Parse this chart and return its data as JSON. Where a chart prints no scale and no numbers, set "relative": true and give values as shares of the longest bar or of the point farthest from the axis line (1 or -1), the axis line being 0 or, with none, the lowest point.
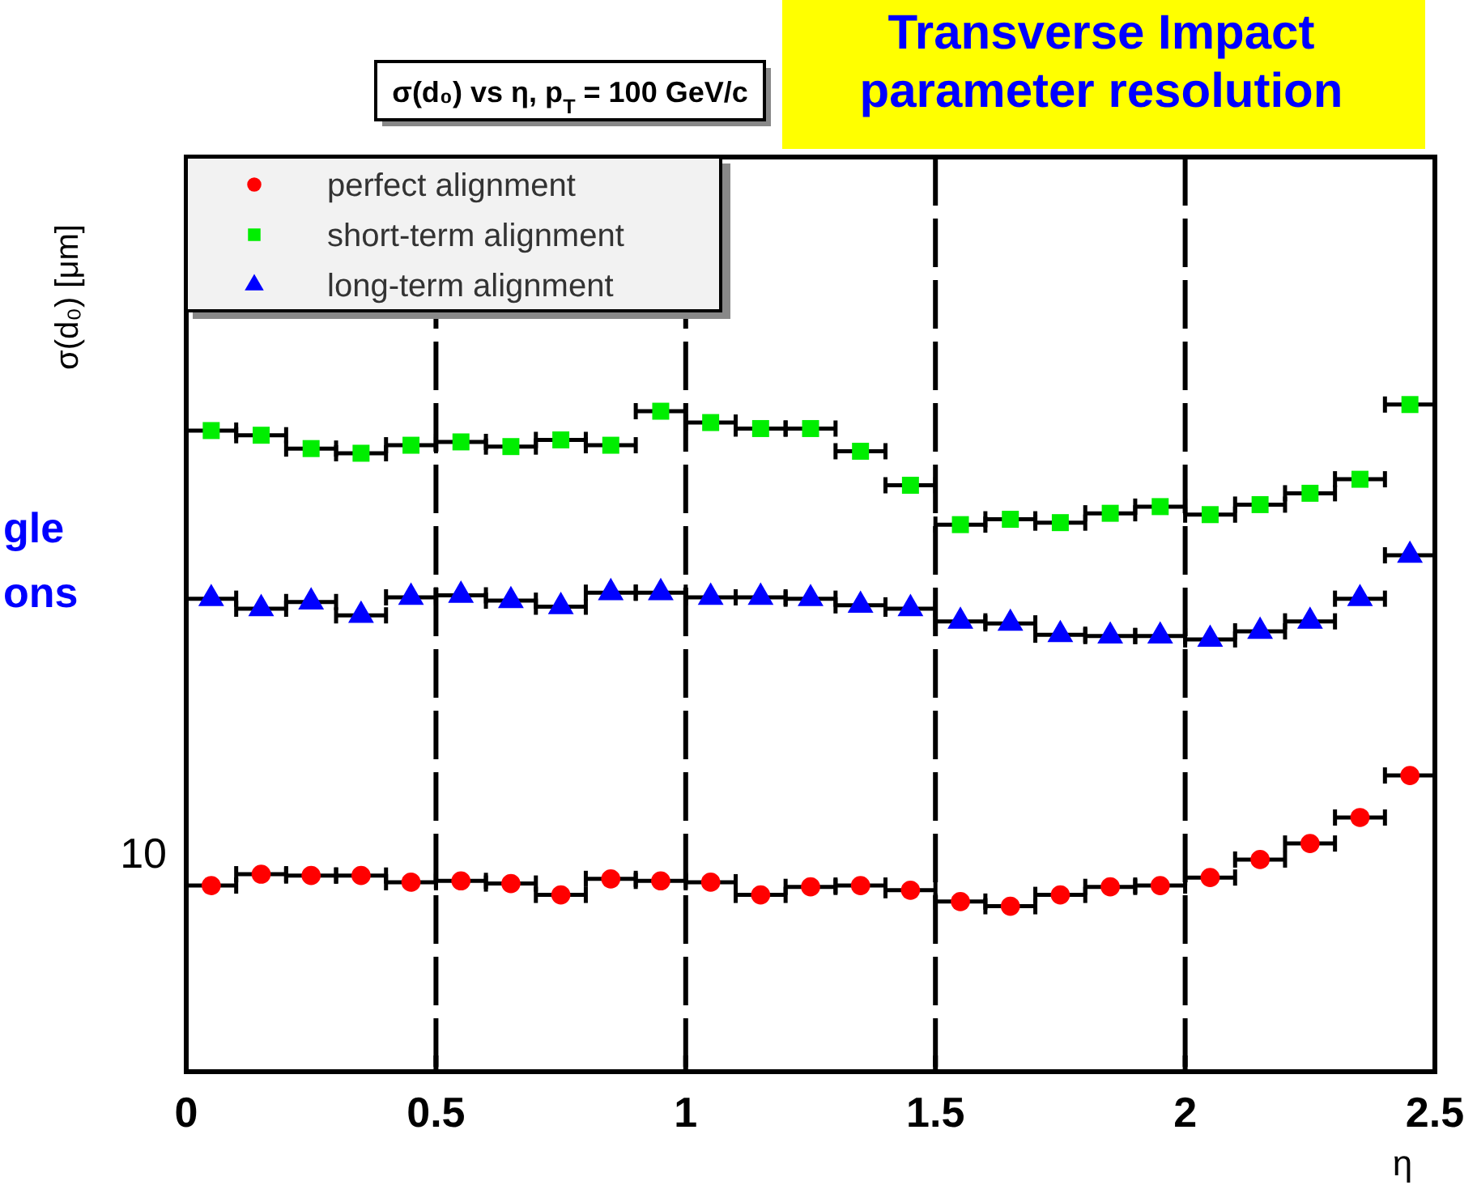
{
  "chart_data": {
    "type": "scatter",
    "title": "σ(d₀) vs η, p$_{T}$ = 100 GeV/c",
    "subtitle": "Transverse Impact parameter resolution",
    "xlabel": "η",
    "ylabel": "σ(d₀) [μm]",
    "relative": true,
    "annotations": [
      "gle",
      "ons",
      "10"
    ],
    "x": [
      0.05,
      0.15,
      0.25,
      0.35,
      0.45,
      0.55,
      0.65,
      0.75,
      0.85,
      0.95,
      1.05,
      1.15,
      1.25,
      1.35,
      1.45,
      1.55,
      1.65,
      1.75,
      1.85,
      1.95,
      2.05,
      2.15,
      2.25,
      2.35,
      2.45
    ],
    "xlim": [
      0,
      2.5
    ],
    "xticks": [
      0,
      0.5,
      1,
      1.5,
      2,
      2.5
    ],
    "grid": "x",
    "legend": "top left",
    "series": [
      {
        "name": "perfect alignment",
        "color": "#ff0000",
        "marker": "circle",
        "values": [
          0.279,
          0.296,
          0.294,
          0.294,
          0.284,
          0.286,
          0.282,
          0.265,
          0.289,
          0.286,
          0.284,
          0.265,
          0.277,
          0.279,
          0.272,
          0.255,
          0.248,
          0.265,
          0.277,
          0.279,
          0.291,
          0.318,
          0.342,
          0.381,
          0.444
        ],
        "xerrors": [
          0.05,
          0.05,
          0.05,
          0.05,
          0.05,
          0.05,
          0.05,
          0.05,
          0.05,
          0.05,
          0.05,
          0.05,
          0.05,
          0.05,
          0.05,
          0.05,
          0.05,
          0.05,
          0.05,
          0.05,
          0.05,
          0.05,
          0.05,
          0.05,
          0.05
        ]
      },
      {
        "name": "short-term alignment",
        "color": "#00ee00",
        "marker": "square",
        "values": [
          0.961,
          0.954,
          0.934,
          0.927,
          0.939,
          0.944,
          0.937,
          0.947,
          0.939,
          0.99,
          0.973,
          0.964,
          0.964,
          0.93,
          0.879,
          0.82,
          0.828,
          0.823,
          0.837,
          0.847,
          0.835,
          0.85,
          0.867,
          0.888,
          1
        ],
        "xerrors": [
          0.05,
          0.05,
          0.05,
          0.05,
          0.05,
          0.05,
          0.05,
          0.05,
          0.05,
          0.05,
          0.05,
          0.05,
          0.05,
          0.05,
          0.05,
          0.05,
          0.05,
          0.05,
          0.05,
          0.05,
          0.05,
          0.05,
          0.05,
          0.05,
          0.05
        ]
      },
      {
        "name": "long-term alignment",
        "color": "#0000ff",
        "marker": "triangle",
        "values": [
          0.709,
          0.694,
          0.704,
          0.684,
          0.711,
          0.714,
          0.706,
          0.697,
          0.718,
          0.718,
          0.711,
          0.711,
          0.709,
          0.699,
          0.694,
          0.675,
          0.672,
          0.655,
          0.653,
          0.653,
          0.648,
          0.66,
          0.675,
          0.709,
          0.774
        ],
        "xerrors": [
          0.05,
          0.05,
          0.05,
          0.05,
          0.05,
          0.05,
          0.05,
          0.05,
          0.05,
          0.05,
          0.05,
          0.05,
          0.05,
          0.05,
          0.05,
          0.05,
          0.05,
          0.05,
          0.05,
          0.05,
          0.05,
          0.05,
          0.05,
          0.05,
          0.05
        ]
      }
    ]
  }
}
